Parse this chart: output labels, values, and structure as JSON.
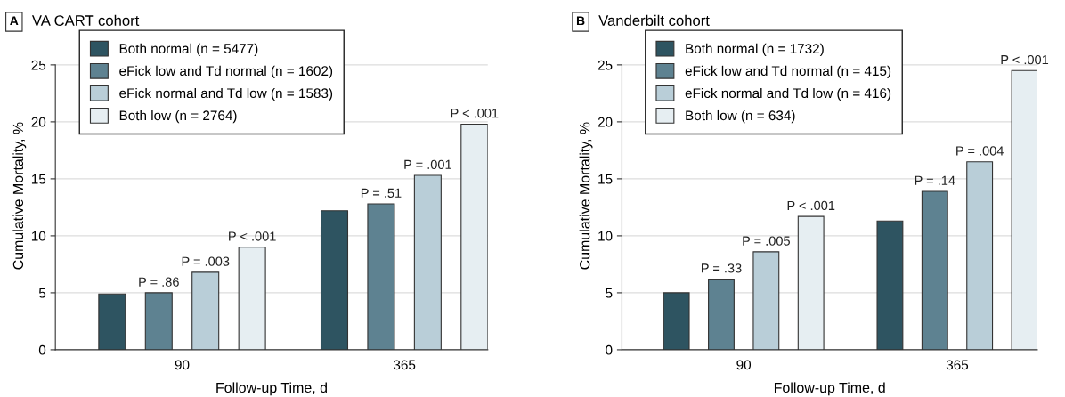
{
  "chart_data": [
    {
      "type": "bar",
      "title": "VA CART cohort",
      "xlabel": "Follow-up Time, d",
      "ylabel": "Cumulative Mortality, %",
      "categories": [
        "90",
        "365"
      ],
      "ylim": [
        0,
        27
      ],
      "yticks": [
        0,
        5,
        10,
        15,
        20,
        25
      ],
      "grid": "y",
      "legend": "top left",
      "annotations": [
        "A",
        "P = .86",
        "P = .003",
        "P < .001",
        "P = .51",
        "P = .001",
        "P < .001"
      ],
      "series": [
        {
          "name": "Both normal (n = 5477)",
          "color": "#2e5461",
          "values": [
            4.9,
            12.2
          ]
        },
        {
          "name": "eFick low and Td normal (n = 1602)",
          "color": "#5e8291",
          "values": [
            5.0,
            12.8
          ]
        },
        {
          "name": "eFick normal and Td low (n = 1583)",
          "color": "#b9ced8",
          "values": [
            6.8,
            15.3
          ]
        },
        {
          "name": "Both low (n = 2764)",
          "color": "#e6eef2",
          "values": [
            9.0,
            19.8
          ]
        }
      ]
    },
    {
      "type": "bar",
      "title": "Vanderbilt cohort",
      "xlabel": "Follow-up Time, d",
      "ylabel": "Cumulative Mortality, %",
      "categories": [
        "90",
        "365"
      ],
      "ylim": [
        0,
        27
      ],
      "yticks": [
        0,
        5,
        10,
        15,
        20,
        25
      ],
      "grid": "y",
      "legend": "top left",
      "annotations": [
        "B",
        "P = .33",
        "P = .005",
        "P < .001",
        "P = .14",
        "P = .004",
        "P < .001"
      ],
      "series": [
        {
          "name": "Both normal (n = 1732)",
          "color": "#2e5461",
          "values": [
            5.0,
            11.3
          ]
        },
        {
          "name": "eFick low and Td normal (n = 415)",
          "color": "#5e8291",
          "values": [
            6.2,
            13.9
          ]
        },
        {
          "name": "eFick normal and Td low (n = 416)",
          "color": "#b9ced8",
          "values": [
            8.6,
            16.5
          ]
        },
        {
          "name": "Both low (n = 634)",
          "color": "#e6eef2",
          "values": [
            11.7,
            24.5
          ]
        }
      ]
    }
  ]
}
